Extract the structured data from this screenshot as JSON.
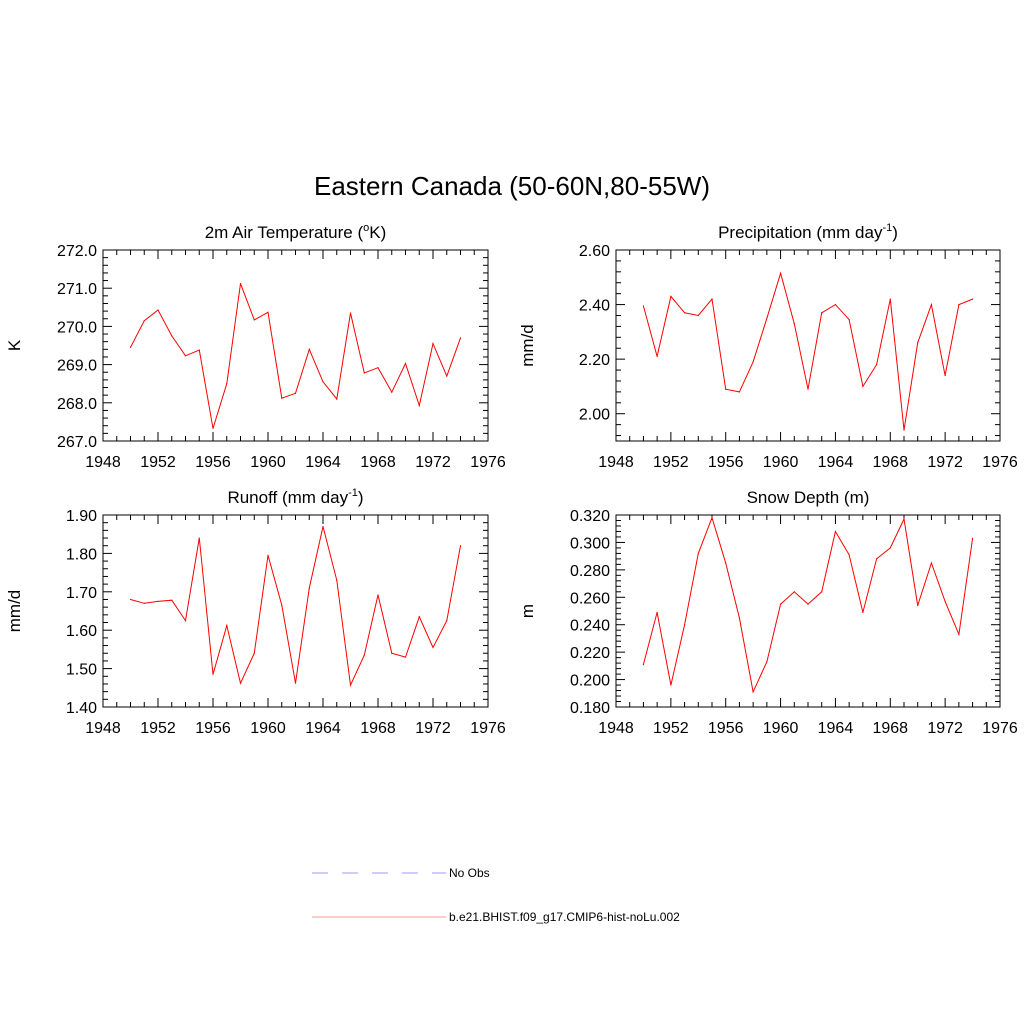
{
  "title": "Eastern Canada (50-60N,80-55W)",
  "colors": {
    "model": "#ff0000",
    "obs": "#9999ff",
    "axis": "#000000"
  },
  "legend": {
    "obs_label": "No Obs",
    "model_label": "b.e21.BHIST.f09_g17.CMIP6-hist-noLu.002"
  },
  "chart_data": [
    {
      "type": "line",
      "title": "2m Air Temperature (",
      "title_sup": "o",
      "title_tail": "K)",
      "ylabel": "K",
      "xlim": [
        1948,
        1976
      ],
      "ylim": [
        267.0,
        272.0
      ],
      "xticks": [
        "1948",
        "1952",
        "1956",
        "1960",
        "1964",
        "1968",
        "1972",
        "1976"
      ],
      "yticks": [
        "267.0",
        "268.0",
        "269.0",
        "270.0",
        "271.0",
        "272.0"
      ],
      "series": [
        {
          "name": "b.e21.BHIST.f09_g17.CMIP6-hist-noLu.002",
          "x": [
            1950,
            1951,
            1952,
            1953,
            1954,
            1955,
            1956,
            1957,
            1958,
            1959,
            1960,
            1961,
            1962,
            1963,
            1964,
            1965,
            1966,
            1967,
            1968,
            1969,
            1970,
            1971,
            1972,
            1973,
            1974
          ],
          "y": [
            269.45,
            270.15,
            270.43,
            269.75,
            269.23,
            269.38,
            267.33,
            268.5,
            271.12,
            270.17,
            270.37,
            268.12,
            268.25,
            269.4,
            268.55,
            268.1,
            270.35,
            268.78,
            268.92,
            268.28,
            269.03,
            267.93,
            269.55,
            268.7,
            269.7
          ]
        }
      ]
    },
    {
      "type": "line",
      "title": "Precipitation (mm day",
      "title_sup": "-1",
      "title_tail": ")",
      "ylabel": "mm/d",
      "xlim": [
        1948,
        1976
      ],
      "ylim": [
        1.9,
        2.6
      ],
      "xticks": [
        "1948",
        "1952",
        "1956",
        "1960",
        "1964",
        "1968",
        "1972",
        "1976"
      ],
      "yticks": [
        "2.00",
        "2.20",
        "2.40",
        "2.60"
      ],
      "series": [
        {
          "name": "b.e21.BHIST.f09_g17.CMIP6-hist-noLu.002",
          "x": [
            1950,
            1951,
            1952,
            1953,
            1954,
            1955,
            1956,
            1957,
            1958,
            1959,
            1960,
            1961,
            1962,
            1963,
            1964,
            1965,
            1966,
            1967,
            1968,
            1969,
            1970,
            1971,
            1972,
            1973,
            1974
          ],
          "y": [
            2.395,
            2.21,
            2.43,
            2.37,
            2.36,
            2.42,
            2.09,
            2.08,
            2.19,
            2.35,
            2.515,
            2.33,
            2.09,
            2.37,
            2.4,
            2.345,
            2.1,
            2.18,
            2.42,
            1.94,
            2.26,
            2.4,
            2.14,
            2.4,
            2.42
          ]
        }
      ]
    },
    {
      "type": "line",
      "title": "Runoff (mm day",
      "title_sup": "-1",
      "title_tail": ")",
      "ylabel": "mm/d",
      "xlim": [
        1948,
        1976
      ],
      "ylim": [
        1.4,
        1.9
      ],
      "xticks": [
        "1948",
        "1952",
        "1956",
        "1960",
        "1964",
        "1968",
        "1972",
        "1976"
      ],
      "yticks": [
        "1.40",
        "1.50",
        "1.60",
        "1.70",
        "1.80",
        "1.90"
      ],
      "series": [
        {
          "name": "b.e21.BHIST.f09_g17.CMIP6-hist-noLu.002",
          "x": [
            1950,
            1951,
            1952,
            1953,
            1954,
            1955,
            1956,
            1957,
            1958,
            1959,
            1960,
            1961,
            1962,
            1963,
            1964,
            1965,
            1966,
            1967,
            1968,
            1969,
            1970,
            1971,
            1972,
            1973,
            1974
          ],
          "y": [
            1.68,
            1.67,
            1.675,
            1.678,
            1.625,
            1.84,
            1.485,
            1.612,
            1.462,
            1.54,
            1.795,
            1.665,
            1.462,
            1.71,
            1.87,
            1.73,
            1.457,
            1.535,
            1.692,
            1.54,
            1.53,
            1.635,
            1.555,
            1.625,
            1.82
          ]
        }
      ]
    },
    {
      "type": "line",
      "title": "Snow Depth (m)",
      "title_sup": "",
      "title_tail": "",
      "ylabel": "m",
      "xlim": [
        1948,
        1976
      ],
      "ylim": [
        0.18,
        0.32
      ],
      "xticks": [
        "1948",
        "1952",
        "1956",
        "1960",
        "1964",
        "1968",
        "1972",
        "1976"
      ],
      "yticks": [
        "0.180",
        "0.200",
        "0.220",
        "0.240",
        "0.260",
        "0.280",
        "0.300",
        "0.320"
      ],
      "series": [
        {
          "name": "b.e21.BHIST.f09_g17.CMIP6-hist-noLu.002",
          "x": [
            1950,
            1951,
            1952,
            1953,
            1954,
            1955,
            1956,
            1957,
            1958,
            1959,
            1960,
            1961,
            1962,
            1963,
            1964,
            1965,
            1966,
            1967,
            1968,
            1969,
            1970,
            1971,
            1972,
            1973,
            1974
          ],
          "y": [
            0.211,
            0.249,
            0.196,
            0.24,
            0.292,
            0.318,
            0.285,
            0.245,
            0.191,
            0.213,
            0.255,
            0.264,
            0.255,
            0.264,
            0.308,
            0.291,
            0.249,
            0.288,
            0.296,
            0.317,
            0.254,
            0.285,
            0.257,
            0.233,
            0.303
          ]
        }
      ]
    }
  ]
}
